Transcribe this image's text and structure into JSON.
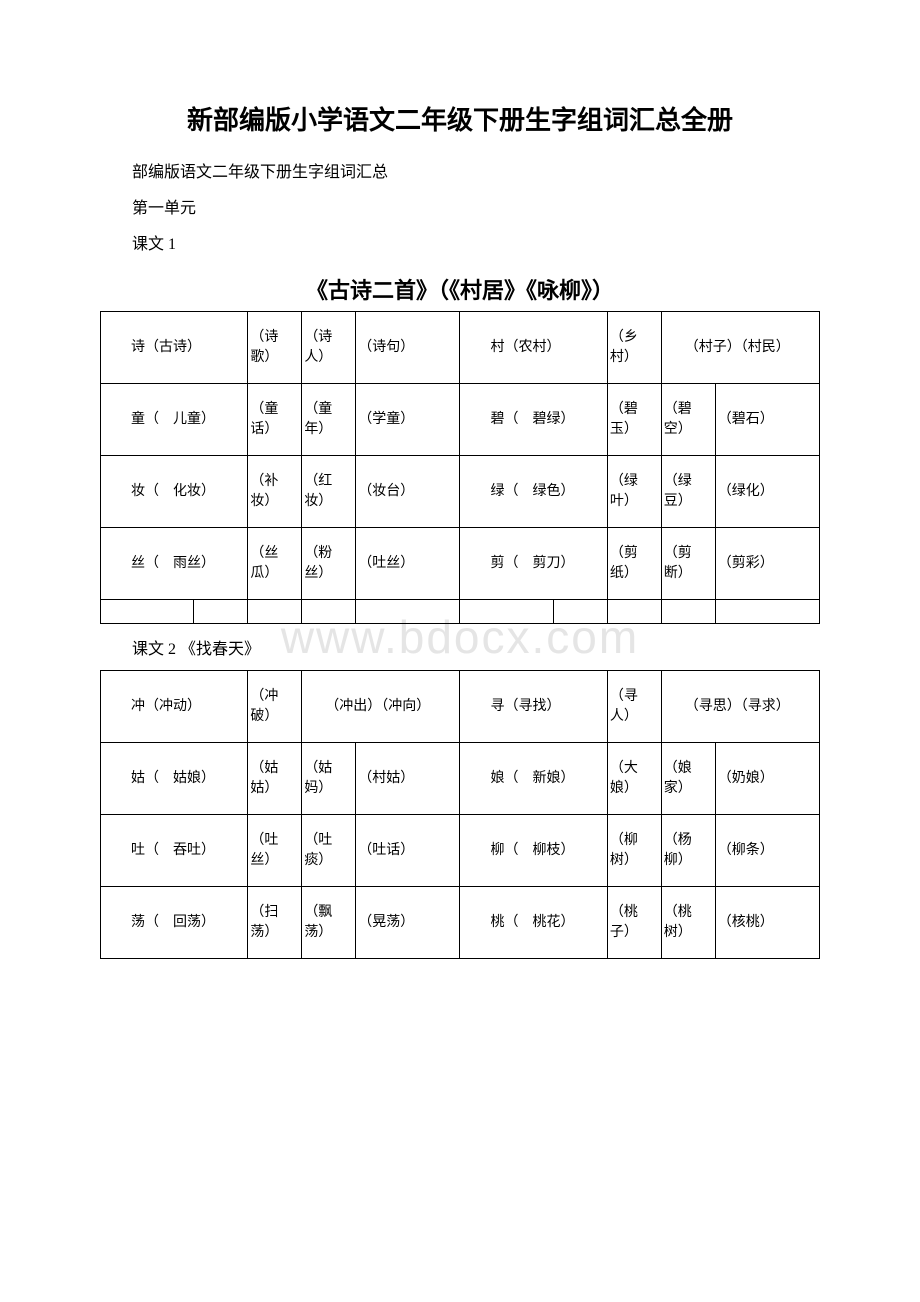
{
  "title": "新部编版小学语文二年级下册生字组词汇总全册",
  "subtitle": "部编版语文二年级下册生字组词汇总",
  "unit": "第一单元",
  "lesson1_label": "课文 1",
  "lesson1_title": "《古诗二首》（《村居》《咏柳》）",
  "lesson2_label": "课文 2 《找春天》",
  "watermark": "www.bdocx.com",
  "table1": {
    "spacer": "",
    "rows": [
      {
        "a1": "　　诗（古诗）",
        "a2": "（诗歌）",
        "a3": "（诗人）",
        "a4": "（诗句）",
        "b1": "　　村（农村）",
        "b2": "（乡村）",
        "b3_4": "　　（村子）（村民）"
      },
      {
        "a1": "　　童（　儿童）",
        "a2": "（童话）",
        "a3": "（童年）",
        "a4": "（学童）",
        "b1": "　　碧（　碧绿）",
        "b2": "（碧玉）",
        "b3": "（碧空）",
        "b4": "（碧石）"
      },
      {
        "a1": "　　妆（　化妆）",
        "a2": "（补妆）",
        "a3": "（红妆）",
        "a4": "（妆台）",
        "b1": "　　绿（　绿色）",
        "b2": "（绿叶）",
        "b3": "（绿豆）",
        "b4": "（绿化）"
      },
      {
        "a1": "　　丝（　雨丝）",
        "a2": "（丝瓜）",
        "a3": "（粉丝）",
        "a4": "（吐丝）",
        "b1": "　　剪（　剪刀）",
        "b2": "（剪纸）",
        "b3": "（剪断）",
        "b4": "（剪彩）"
      }
    ]
  },
  "table2": {
    "rows": [
      {
        "a1": "　　冲（冲动）",
        "a2": "（冲破）",
        "a3_4": "　　（冲出）（冲向）",
        "b1": "　　寻（寻找）",
        "b2": "（寻人）",
        "b3_4": "　　（寻思）（寻求）"
      },
      {
        "a1": "　　姑（　姑娘）",
        "a2": "（姑姑）",
        "a3": "（姑妈）",
        "a4": "（村姑）",
        "b1": "　　娘（　新娘）",
        "b2": "（大娘）",
        "b3": "（娘家）",
        "b4": "（奶娘）"
      },
      {
        "a1": "　　吐（　吞吐）",
        "a2": "（吐丝）",
        "a3": "（吐痰）",
        "a4": "（吐话）",
        "b1": "　　柳（　柳枝）",
        "b2": "（柳树）",
        "b3": "（杨柳）",
        "b4": "（柳条）"
      },
      {
        "a1": "　　荡（　回荡）",
        "a2": "（扫荡）",
        "a3": "（飘荡）",
        "a4": "（晃荡）",
        "b1": "　　桃（　桃花）",
        "b2": "（桃子）",
        "b3": "（桃树）",
        "b4": "（核桃）"
      }
    ]
  }
}
